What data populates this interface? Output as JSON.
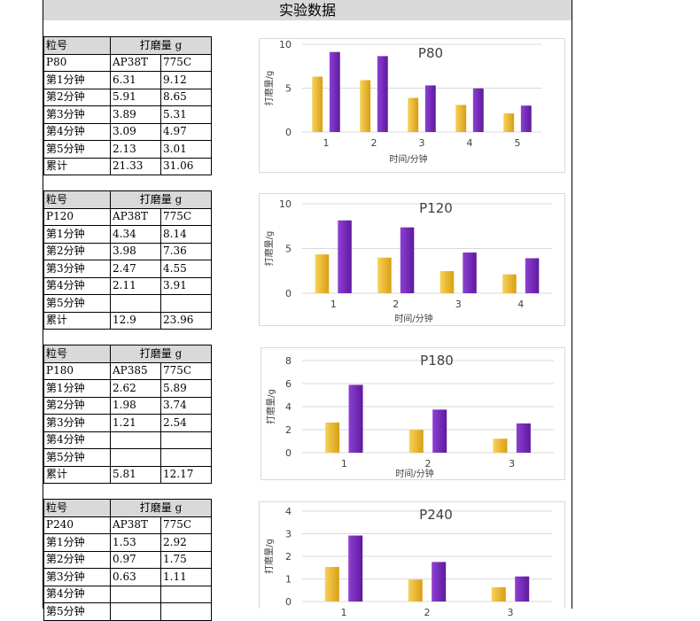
{
  "document": {
    "title": "实验数据"
  },
  "labels": {
    "grit": "粒号",
    "wear_amount": "打磨量 g"
  },
  "tables": [
    {
      "rows": [
        [
          "P80",
          "AP38T",
          "775C"
        ],
        [
          "第1分钟",
          "6.31",
          "9.12"
        ],
        [
          "第2分钟",
          "5.91",
          "8.65"
        ],
        [
          "第3分钟",
          "3.89",
          "5.31"
        ],
        [
          "第4分钟",
          "3.09",
          "4.97"
        ],
        [
          "第5分钟",
          "2.13",
          "3.01"
        ],
        [
          "累计",
          "21.33",
          "31.06"
        ]
      ]
    },
    {
      "rows": [
        [
          "P120",
          "AP38T",
          "775C"
        ],
        [
          "第1分钟",
          "4.34",
          "8.14"
        ],
        [
          "第2分钟",
          "3.98",
          "7.36"
        ],
        [
          "第3分钟",
          "2.47",
          "4.55"
        ],
        [
          "第4分钟",
          "2.11",
          "3.91"
        ],
        [
          "第5分钟",
          "",
          ""
        ],
        [
          "累计",
          "12.9",
          "23.96"
        ]
      ]
    },
    {
      "rows": [
        [
          "P180",
          "AP385",
          "775C"
        ],
        [
          "第1分钟",
          "2.62",
          "5.89"
        ],
        [
          "第2分钟",
          "1.98",
          "3.74"
        ],
        [
          "第3分钟",
          "1.21",
          "2.54"
        ],
        [
          "第4分钟",
          "",
          ""
        ],
        [
          "第5分钟",
          "",
          ""
        ],
        [
          "累计",
          "5.81",
          "12.17"
        ]
      ]
    },
    {
      "rows": [
        [
          "P240",
          "AP38T",
          "775C"
        ],
        [
          "第1分钟",
          "1.53",
          "2.92"
        ],
        [
          "第2分钟",
          "0.97",
          "1.75"
        ],
        [
          "第3分钟",
          "0.63",
          "1.11"
        ],
        [
          "第4分钟",
          "",
          ""
        ],
        [
          "第5分钟",
          "",
          ""
        ]
      ]
    }
  ],
  "colors": {
    "gold": "#e8b923",
    "purple": "#7b2cbf",
    "grid": "#d9d9d9",
    "axis_text": "#404040"
  },
  "chart_data": [
    {
      "type": "bar",
      "title": "P80",
      "categories": [
        "1",
        "2",
        "3",
        "4",
        "5"
      ],
      "series": [
        {
          "values": [
            6.31,
            5.91,
            3.89,
            3.09,
            2.13
          ],
          "color": "#e8b923"
        },
        {
          "values": [
            9.12,
            8.65,
            5.31,
            4.97,
            3.01
          ],
          "color": "#7b2cbf"
        }
      ],
      "xlabel": "时间/分钟",
      "ylabel": "打磨量/g",
      "ylim": [
        0,
        10
      ],
      "yticks": [
        "0",
        "5",
        "10"
      ],
      "grid": true
    },
    {
      "type": "bar",
      "title": "P120",
      "categories": [
        "1",
        "2",
        "3",
        "4"
      ],
      "series": [
        {
          "values": [
            4.34,
            3.98,
            2.47,
            2.11
          ],
          "color": "#e8b923"
        },
        {
          "values": [
            8.14,
            7.36,
            4.55,
            3.91
          ],
          "color": "#7b2cbf"
        }
      ],
      "xlabel": "时间/分钟",
      "ylabel": "打磨量/g",
      "ylim": [
        0,
        10
      ],
      "yticks": [
        "0",
        "5",
        "10"
      ],
      "grid": true
    },
    {
      "type": "bar",
      "title": "P180",
      "categories": [
        "1",
        "2",
        "3"
      ],
      "series": [
        {
          "values": [
            2.62,
            1.98,
            1.21
          ],
          "color": "#e8b923"
        },
        {
          "values": [
            5.89,
            3.74,
            2.54
          ],
          "color": "#7b2cbf"
        }
      ],
      "xlabel": "时间/分钟",
      "ylabel": "打磨量/g",
      "ylim": [
        0,
        8
      ],
      "yticks": [
        "0",
        "2",
        "4",
        "6",
        "8"
      ],
      "grid": true
    },
    {
      "type": "bar",
      "title": "P240",
      "categories": [
        "1",
        "2",
        "3"
      ],
      "series": [
        {
          "values": [
            1.53,
            0.97,
            0.63
          ],
          "color": "#e8b923"
        },
        {
          "values": [
            2.92,
            1.75,
            1.11
          ],
          "color": "#7b2cbf"
        }
      ],
      "xlabel": "",
      "ylabel": "打磨量/g",
      "ylim": [
        0,
        4
      ],
      "yticks": [
        "0",
        "1",
        "2",
        "3",
        "4"
      ],
      "grid": true
    }
  ]
}
